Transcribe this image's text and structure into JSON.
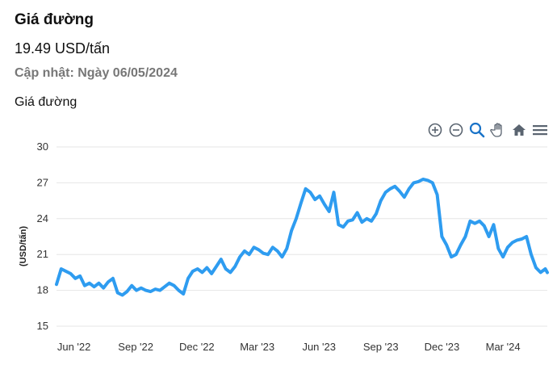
{
  "header": {
    "title": "Giá đường",
    "price": "19.49 USD/tấn",
    "updated_prefix": "Cập nhật: ",
    "updated_date": "Ngày 06/05/2024",
    "chart_title": "Giá đường"
  },
  "toolbar": {
    "icons": [
      "zoom-in-icon",
      "zoom-out-icon",
      "zoom-select-icon",
      "pan-hand-icon",
      "home-reset-icon",
      "menu-icon"
    ]
  },
  "colors": {
    "line": "#2e9cf0",
    "grid": "#e6e6e6",
    "icon": "#5a6470",
    "icon_active": "#1a73c8"
  },
  "chart_data": {
    "type": "line",
    "title": "Giá đường",
    "ylabel": "(USD/tấn)",
    "xlabel": "",
    "ylim": [
      15,
      30
    ],
    "yticks": [
      30,
      27,
      24,
      21,
      18,
      15
    ],
    "xtick_labels": [
      "Jun '22",
      "Sep '22",
      "Dec '22",
      "Mar '23",
      "Jun '23",
      "Sep '23",
      "Dec '23",
      "Mar '24"
    ],
    "x_range": [
      "2022-05-06",
      "2024-05-06"
    ],
    "grid": true,
    "series": [
      {
        "points": [
          [
            "2022-05-06",
            18.5
          ],
          [
            "2022-05-13",
            19.8
          ],
          [
            "2022-05-20",
            19.6
          ],
          [
            "2022-05-27",
            19.4
          ],
          [
            "2022-06-03",
            19.0
          ],
          [
            "2022-06-10",
            19.2
          ],
          [
            "2022-06-17",
            18.4
          ],
          [
            "2022-06-24",
            18.6
          ],
          [
            "2022-07-01",
            18.3
          ],
          [
            "2022-07-08",
            18.6
          ],
          [
            "2022-07-15",
            18.2
          ],
          [
            "2022-07-22",
            18.7
          ],
          [
            "2022-07-29",
            19.0
          ],
          [
            "2022-08-05",
            17.8
          ],
          [
            "2022-08-12",
            17.6
          ],
          [
            "2022-08-19",
            17.9
          ],
          [
            "2022-08-26",
            18.4
          ],
          [
            "2022-09-02",
            18.0
          ],
          [
            "2022-09-09",
            18.2
          ],
          [
            "2022-09-16",
            18.0
          ],
          [
            "2022-09-23",
            17.9
          ],
          [
            "2022-09-30",
            18.1
          ],
          [
            "2022-10-07",
            18.0
          ],
          [
            "2022-10-14",
            18.3
          ],
          [
            "2022-10-21",
            18.6
          ],
          [
            "2022-10-28",
            18.4
          ],
          [
            "2022-11-04",
            18.0
          ],
          [
            "2022-11-11",
            17.7
          ],
          [
            "2022-11-18",
            19.0
          ],
          [
            "2022-11-25",
            19.6
          ],
          [
            "2022-12-02",
            19.8
          ],
          [
            "2022-12-09",
            19.5
          ],
          [
            "2022-12-16",
            19.9
          ],
          [
            "2022-12-23",
            19.4
          ],
          [
            "2022-12-30",
            20.0
          ],
          [
            "2023-01-06",
            20.6
          ],
          [
            "2023-01-13",
            19.8
          ],
          [
            "2023-01-20",
            19.5
          ],
          [
            "2023-01-27",
            20.0
          ],
          [
            "2023-02-03",
            20.8
          ],
          [
            "2023-02-10",
            21.3
          ],
          [
            "2023-02-17",
            21.0
          ],
          [
            "2023-02-24",
            21.6
          ],
          [
            "2023-03-03",
            21.4
          ],
          [
            "2023-03-10",
            21.1
          ],
          [
            "2023-03-17",
            21.0
          ],
          [
            "2023-03-24",
            21.6
          ],
          [
            "2023-03-31",
            21.3
          ],
          [
            "2023-04-07",
            20.8
          ],
          [
            "2023-04-14",
            21.5
          ],
          [
            "2023-04-21",
            23.0
          ],
          [
            "2023-04-28",
            24.0
          ],
          [
            "2023-05-05",
            25.3
          ],
          [
            "2023-05-12",
            26.5
          ],
          [
            "2023-05-19",
            26.2
          ],
          [
            "2023-05-26",
            25.6
          ],
          [
            "2023-06-02",
            25.9
          ],
          [
            "2023-06-09",
            25.2
          ],
          [
            "2023-06-16",
            24.6
          ],
          [
            "2023-06-23",
            26.2
          ],
          [
            "2023-06-30",
            23.5
          ],
          [
            "2023-07-07",
            23.3
          ],
          [
            "2023-07-14",
            23.8
          ],
          [
            "2023-07-21",
            23.9
          ],
          [
            "2023-07-28",
            24.5
          ],
          [
            "2023-08-04",
            23.7
          ],
          [
            "2023-08-11",
            24.0
          ],
          [
            "2023-08-18",
            23.8
          ],
          [
            "2023-08-25",
            24.4
          ],
          [
            "2023-09-01",
            25.5
          ],
          [
            "2023-09-08",
            26.2
          ],
          [
            "2023-09-15",
            26.5
          ],
          [
            "2023-09-22",
            26.7
          ],
          [
            "2023-09-29",
            26.3
          ],
          [
            "2023-10-06",
            25.8
          ],
          [
            "2023-10-13",
            26.5
          ],
          [
            "2023-10-20",
            27.0
          ],
          [
            "2023-10-27",
            27.1
          ],
          [
            "2023-11-03",
            27.3
          ],
          [
            "2023-11-10",
            27.2
          ],
          [
            "2023-11-17",
            27.0
          ],
          [
            "2023-11-24",
            26.0
          ],
          [
            "2023-12-01",
            22.5
          ],
          [
            "2023-12-08",
            21.8
          ],
          [
            "2023-12-15",
            20.8
          ],
          [
            "2023-12-22",
            21.0
          ],
          [
            "2023-12-29",
            21.8
          ],
          [
            "2024-01-05",
            22.5
          ],
          [
            "2024-01-12",
            23.8
          ],
          [
            "2024-01-19",
            23.6
          ],
          [
            "2024-01-26",
            23.8
          ],
          [
            "2024-02-02",
            23.4
          ],
          [
            "2024-02-09",
            22.5
          ],
          [
            "2024-02-16",
            23.5
          ],
          [
            "2024-02-23",
            21.5
          ],
          [
            "2024-03-01",
            20.8
          ],
          [
            "2024-03-08",
            21.6
          ],
          [
            "2024-03-15",
            22.0
          ],
          [
            "2024-03-22",
            22.2
          ],
          [
            "2024-03-29",
            22.3
          ],
          [
            "2024-04-05",
            22.5
          ],
          [
            "2024-04-12",
            21.0
          ],
          [
            "2024-04-19",
            19.9
          ],
          [
            "2024-04-26",
            19.5
          ],
          [
            "2024-05-03",
            19.8
          ],
          [
            "2024-05-06",
            19.49
          ]
        ]
      }
    ]
  }
}
